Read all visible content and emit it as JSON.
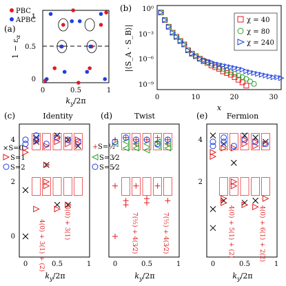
{
  "chart_data": [
    {
      "panel": "(a)",
      "type": "scatter",
      "xlabel": "k_y/2π",
      "ylabel": "1 − ε_α",
      "xlim": [
        0,
        1
      ],
      "ylim": [
        0,
        1
      ],
      "xticks": [
        "0",
        "0.5",
        "1"
      ],
      "yticks": [
        "0",
        "0.5",
        "1"
      ],
      "legend": [
        "PBC",
        "APBC"
      ],
      "legend_position": "top-left",
      "reference_line_y": 0.5,
      "series": [
        {
          "name": "PBC",
          "color": "#e41a1c",
          "x": [
            0.04,
            0.18,
            0.29,
            0.31,
            0.46,
            0.54,
            0.71,
            0.74,
            0.88,
            0.96
          ],
          "y": [
            0.03,
            0.2,
            0.5,
            0.8,
            1.0,
            0.0,
            0.2,
            0.5,
            0.8,
            0.97
          ]
        },
        {
          "name": "APBC",
          "color": "#1f3fe0",
          "x": [
            0.06,
            0.12,
            0.28,
            0.33,
            0.44,
            0.56,
            0.67,
            0.72,
            0.88,
            0.94
          ],
          "y": [
            0.05,
            0.95,
            0.5,
            0.15,
            0.85,
            0.85,
            0.15,
            0.5,
            0.95,
            0.05
          ]
        }
      ],
      "circled_points": [
        [
          0.29,
          0.5
        ],
        [
          0.31,
          0.8
        ],
        [
          0.74,
          0.5
        ],
        [
          0.71,
          0.8
        ]
      ]
    },
    {
      "panel": "(b)",
      "type": "scatter",
      "xlabel": "x",
      "ylabel": "|⟨S_A · S_B⟩|",
      "xlim": [
        0,
        32
      ],
      "ylim_log10": [
        -10,
        0
      ],
      "xticks": [
        "0",
        "10",
        "20",
        "30"
      ],
      "yticks": [
        "10⁰",
        "10⁻³",
        "10⁻⁶",
        "10⁻⁹"
      ],
      "legend_position": "top-right",
      "series": [
        {
          "name": "χ = 40",
          "color": "#e41a1c",
          "marker": "square",
          "x": [
            1,
            2,
            3,
            4,
            5,
            6,
            7,
            8,
            9,
            10,
            11,
            12,
            13,
            14,
            15,
            16,
            17,
            18,
            19,
            20,
            21,
            22,
            23
          ],
          "y_log10": [
            -0.5,
            -1.4,
            -2.2,
            -2.9,
            -3.4,
            -3.9,
            -4.3,
            -5.0,
            -5.4,
            -5.7,
            -6.0,
            -6.3,
            -6.5,
            -6.8,
            -7.0,
            -7.2,
            -7.5,
            -7.7,
            -7.9,
            -8.2,
            -8.5,
            -8.8,
            -9.2
          ]
        },
        {
          "name": "χ = 80",
          "color": "#2ca02c",
          "marker": "circle",
          "x": [
            1,
            2,
            3,
            4,
            5,
            6,
            7,
            8,
            9,
            10,
            11,
            12,
            13,
            14,
            15,
            16,
            17,
            18,
            19,
            20,
            21,
            22,
            23,
            24,
            25
          ],
          "y_log10": [
            -0.5,
            -1.4,
            -2.2,
            -2.9,
            -3.4,
            -3.9,
            -4.3,
            -5.0,
            -5.4,
            -5.7,
            -6.0,
            -6.2,
            -6.4,
            -6.6,
            -6.8,
            -7.0,
            -7.2,
            -7.4,
            -7.6,
            -7.8,
            -8.0,
            -8.2,
            -8.4,
            -8.7,
            -9.0
          ]
        },
        {
          "name": "χ = 240",
          "color": "#1f3fe0",
          "marker": "triangle-right",
          "x": [
            1,
            2,
            3,
            4,
            5,
            6,
            7,
            8,
            9,
            10,
            11,
            12,
            13,
            14,
            15,
            16,
            17,
            18,
            19,
            20,
            21,
            22,
            23,
            24,
            25,
            26,
            27,
            28,
            29,
            30,
            31,
            32
          ],
          "y_log10": [
            -0.5,
            -1.4,
            -2.2,
            -2.9,
            -3.4,
            -3.9,
            -4.3,
            -5.0,
            -5.4,
            -5.7,
            -6.0,
            -6.2,
            -6.3,
            -6.4,
            -6.6,
            -6.7,
            -6.8,
            -6.9,
            -7.0,
            -7.1,
            -7.2,
            -7.3,
            -7.5,
            -7.6,
            -7.7,
            -7.8,
            -7.9,
            -8.0,
            -8.1,
            -8.2,
            -8.2,
            -8.3
          ]
        }
      ]
    },
    {
      "panel": "(c)",
      "title": "Identity",
      "type": "scatter",
      "xlabel": "k_y/2π",
      "xlim": [
        -0.05,
        1
      ],
      "ylim": [
        -1,
        5
      ],
      "xticks": [
        "0",
        "0.5",
        "1"
      ],
      "yticks": [
        "0",
        "2",
        "4"
      ],
      "legend": [
        "S=0",
        "S=1",
        "S=2"
      ],
      "legend_position": "top-left",
      "annotations": [
        "3(0) + 3(1)",
        "4(0) + 3(1) + (2)"
      ],
      "series": [
        {
          "name": "S=0",
          "marker": "x",
          "color": "#000000",
          "x": [
            0,
            0,
            0.17,
            0.17,
            0.33,
            0.5,
            0.5,
            0.67,
            0.67,
            0.83
          ],
          "y": [
            0,
            2.2,
            4.5,
            4.7,
            3.4,
            4.8,
            1.5,
            4.6,
            1.5,
            4.3
          ]
        },
        {
          "name": "S=1",
          "marker": "triangle-right",
          "color": "#e41a1c",
          "x": [
            0,
            0,
            0.17,
            0.17,
            0.33,
            0.33,
            0.33,
            0.33,
            0.5,
            0.5,
            0.5,
            0.67,
            0.67,
            0.67,
            0.83,
            0.83
          ],
          "y": [
            4.2,
            4.0,
            4.5,
            1.3,
            2.4,
            2.6,
            3.4,
            4.3,
            4.5,
            4.7,
            1.3,
            4.6,
            4.4,
            1.5,
            4.6,
            4.4
          ]
        },
        {
          "name": "S=2",
          "marker": "circle",
          "color": "#1f3fe0",
          "x": [
            0,
            0,
            0.17,
            0.17,
            0.33,
            0.5,
            0.67,
            0.83
          ],
          "y": [
            4.4,
            4.6,
            4.6,
            4.8,
            4.4,
            4.7,
            4.6,
            4.5
          ]
        }
      ]
    },
    {
      "panel": "(d)",
      "title": "Twist",
      "type": "scatter",
      "xlabel": "k_y/2π",
      "xlim": [
        -0.05,
        1
      ],
      "ylim": [
        -1,
        5
      ],
      "xticks": [
        "0",
        "0.5",
        "1"
      ],
      "legend": [
        "S=1/2",
        "S=3/2",
        "S=5/2"
      ],
      "legend_position": "top-left",
      "annotations": [
        "7(1/2) + 4(3/2)",
        "7(1/2) + 4(3/2)"
      ],
      "series": [
        {
          "name": "S=1/2",
          "marker": "plus",
          "color": "#e41a1c",
          "x": [
            0,
            0,
            0,
            0.17,
            0.17,
            0.17,
            0.33,
            0.33,
            0.33,
            0.5,
            0.5,
            0.5,
            0.67,
            0.67,
            0.67,
            0.83,
            0.83,
            0.83
          ],
          "y": [
            0,
            2.4,
            4.6,
            1.7,
            1.5,
            4.7,
            2.4,
            4.4,
            4.6,
            1.8,
            1.6,
            4.6,
            2.4,
            4.5,
            4.7,
            1.7,
            4.4,
            4.6
          ]
        },
        {
          "name": "S=3/2",
          "marker": "triangle-left",
          "color": "#2ca02c",
          "x": [
            0,
            0.17,
            0.17,
            0.33,
            0.33,
            0.5,
            0.5,
            0.67,
            0.67,
            0.83,
            0.83
          ],
          "y": [
            4.4,
            4.5,
            4.2,
            4.2,
            4.4,
            4.4,
            4.1,
            4.3,
            4.5,
            4.2,
            4.4
          ]
        },
        {
          "name": "S=5/2",
          "marker": "circle",
          "color": "#1f3fe0",
          "x": [
            0,
            0.17,
            0.33,
            0.5,
            0.67,
            0.83
          ],
          "y": [
            4.5,
            4.7,
            4.6,
            4.6,
            4.4,
            4.6
          ]
        }
      ]
    },
    {
      "panel": "(e)",
      "title": "Fermion",
      "type": "scatter",
      "xlabel": "k_y/2π",
      "xlim": [
        -0.05,
        1
      ],
      "ylim": [
        -1,
        5
      ],
      "xticks": [
        "0",
        "0.5",
        "1"
      ],
      "yticks": [
        "2",
        "4"
      ],
      "annotations": [
        "4(0) + 5(1) + (2)",
        "4(0) + 6(1) + 2(2)"
      ],
      "series": [
        {
          "name": "S=0",
          "marker": "x",
          "color": "#000000",
          "x": [
            0,
            0,
            0,
            0.17,
            0.17,
            0.33,
            0.5,
            0.5,
            0.67,
            0.67,
            0.83
          ],
          "y": [
            0.4,
            1.3,
            4.8,
            4.4,
            1.7,
            3.5,
            4.8,
            1.6,
            4.7,
            1.7,
            4.5
          ]
        },
        {
          "name": "S=1",
          "marker": "triangle-right",
          "color": "#e41a1c",
          "x": [
            0,
            0,
            0.17,
            0.17,
            0.17,
            0.33,
            0.33,
            0.33,
            0.5,
            0.5,
            0.5,
            0.67,
            0.67,
            0.67,
            0.83,
            0.83
          ],
          "y": [
            3.8,
            4.0,
            4.2,
            1.8,
            1.6,
            2.4,
            2.6,
            4.2,
            4.4,
            4.6,
            1.5,
            4.3,
            4.5,
            1.4,
            4.4,
            1.8
          ]
        },
        {
          "name": "S=2",
          "marker": "circle",
          "color": "#1f3fe0",
          "x": [
            0,
            0,
            0.17,
            0.17,
            0.33,
            0.5,
            0.67,
            0.83
          ],
          "y": [
            4.3,
            4.5,
            4.5,
            4.7,
            4.3,
            4.6,
            4.5,
            4.4
          ]
        }
      ]
    }
  ],
  "labels": {
    "a_panel": "(a)",
    "b_panel": "(b)",
    "c_panel": "(c)",
    "d_panel": "(d)",
    "e_panel": "(e)",
    "a_ylabel": "1 − ε",
    "a_ylabel_sub": "α",
    "k_label": "k",
    "k_sub": "y",
    "k_rest": "/2π",
    "b_xlabel": "x",
    "b_ylabel": "|⟨S_A · S_B⟩|",
    "legend_pbc": "PBC",
    "legend_apbc": "APBC",
    "legend_chi40": "χ = 40",
    "legend_chi80": "χ = 80",
    "legend_chi240": "χ = 240",
    "title_identity": "Identity",
    "title_twist": "Twist",
    "title_fermion": "Fermion",
    "leg_s0": "×S=0",
    "leg_s1": "S=1",
    "leg_s2": "S=2",
    "leg_s12": "S=½",
    "leg_s32": "S=3⁄2",
    "leg_s52": "S=5⁄2",
    "ann_c1": "3(0) + 3(1)",
    "ann_c2": "4(0) + 3(1) + (2)",
    "ann_d1": "7(½) + 4(3⁄2)",
    "ann_d2": "7(½) + 4(3⁄2)",
    "ann_e1": "4(0) + 5(1) + (2)",
    "ann_e2": "4(0) + 6(1) + 2(2)"
  }
}
